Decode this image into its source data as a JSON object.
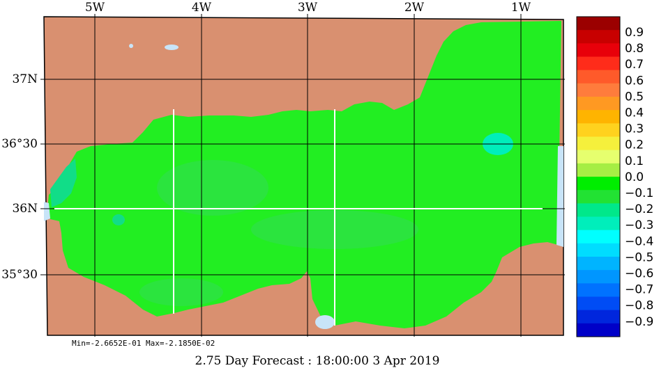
{
  "map": {
    "lon_labels": [
      {
        "text": "5W"
      },
      {
        "text": "4W"
      },
      {
        "text": "3W"
      },
      {
        "text": "2W"
      },
      {
        "text": "1W"
      }
    ],
    "lat_labels": [
      {
        "text": "37N"
      },
      {
        "text": "36°30"
      },
      {
        "text": "36N"
      },
      {
        "text": "35°30"
      }
    ],
    "colors": {
      "land": "#d99070",
      "sea_main": "#22ee22",
      "sea_light": "#33dd55",
      "sea_teal": "#11dd88",
      "sea_cyan": "#00eebb",
      "coast_pale": "#c8e4f8",
      "gridline": "#000000",
      "section_line": "#ffffff"
    }
  },
  "colorbar": {
    "labels": [
      "0.9",
      "0.8",
      "0.7",
      "0.6",
      "0.5",
      "0.4",
      "0.3",
      "0.2",
      "0.1",
      "0.0",
      "−0.1",
      "−0.2",
      "−0.3",
      "−0.4",
      "−0.5",
      "−0.6",
      "−0.7",
      "−0.8",
      "−0.9"
    ],
    "colors": [
      "#9b0000",
      "#c80000",
      "#e8000a",
      "#ff2c1a",
      "#ff5a2a",
      "#ff7c3c",
      "#ff9922",
      "#ffb400",
      "#ffd21e",
      "#f5f03c",
      "#e6ff6e",
      "#a6ee44",
      "#00ee00",
      "#22e233",
      "#00e88a",
      "#00eebb",
      "#00ffff",
      "#00ddff",
      "#00b4ff",
      "#0096ff",
      "#0072ff",
      "#004cf5",
      "#0026dd",
      "#0000c8"
    ]
  },
  "stats": {
    "text": "Min=-2.6652E-01  Max=-2.1850E-02"
  },
  "footer": {
    "text": "2.75 Day Forecast : 18:00:00   3 Apr 2019"
  }
}
